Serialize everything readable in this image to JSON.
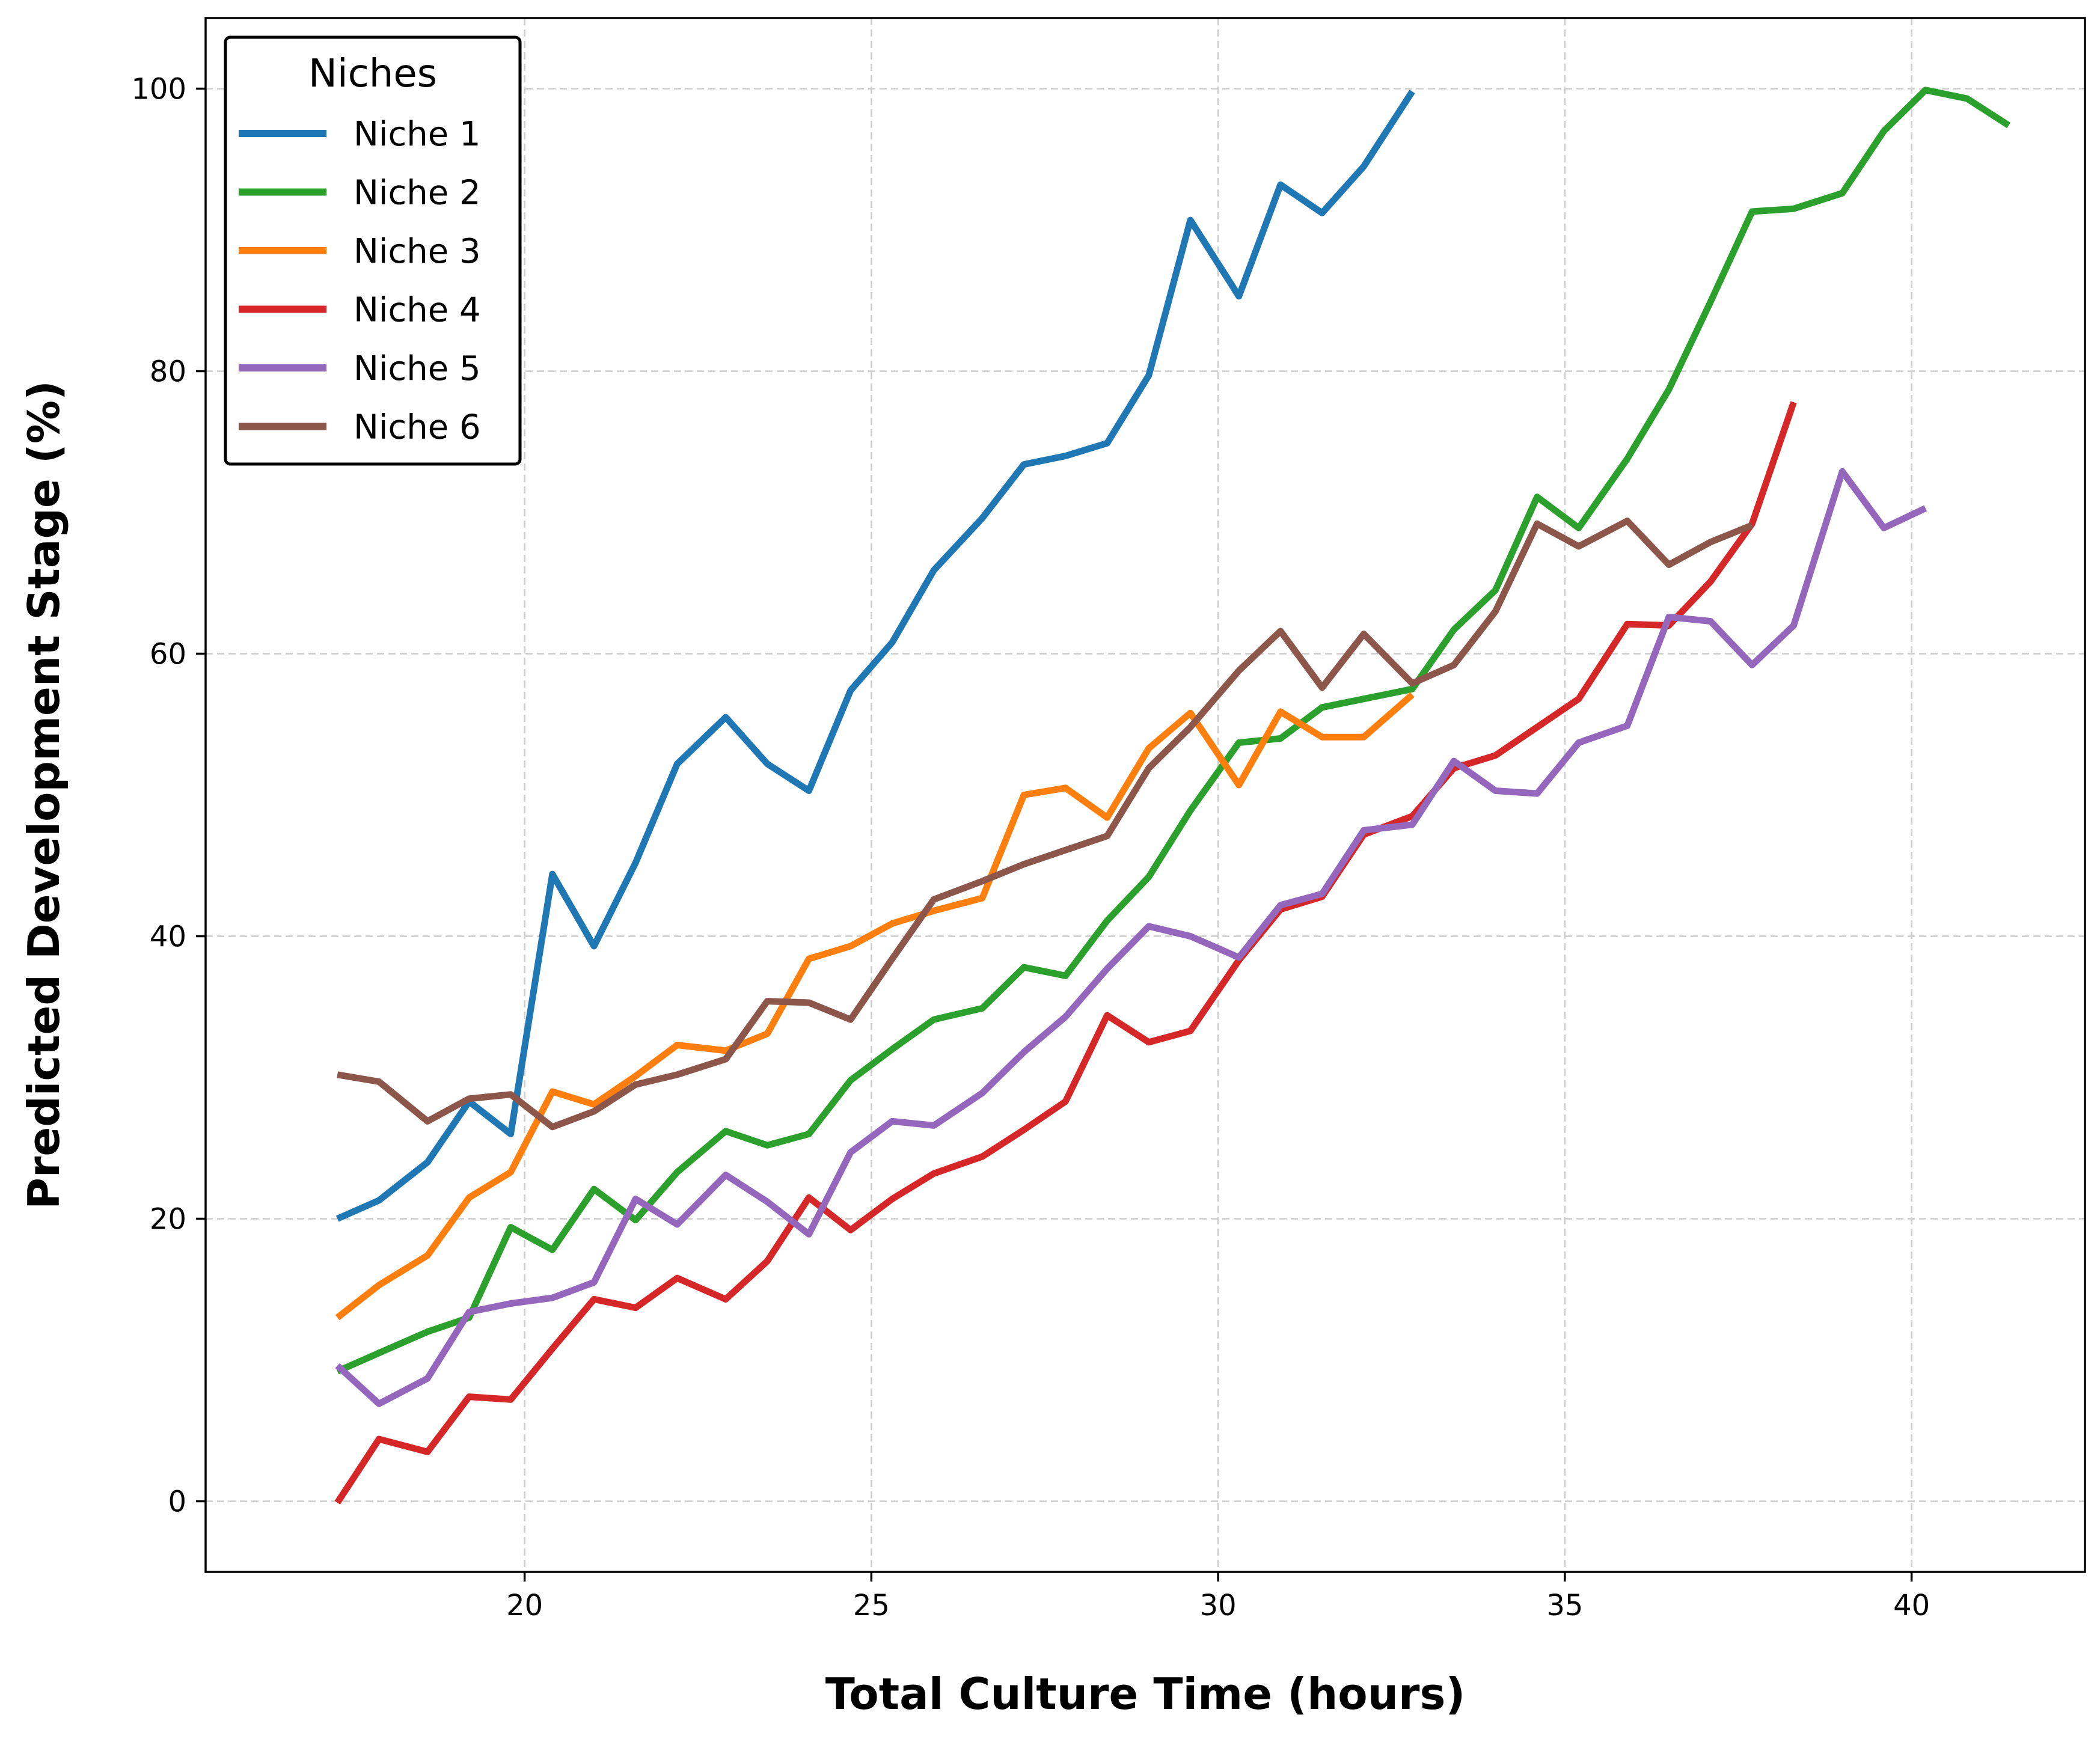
{
  "chart_data": {
    "type": "line",
    "title": "",
    "xlabel": "Total Culture Time (hours)",
    "ylabel": "Predicted Development Stage (%)",
    "xlim": [
      15.4,
      42.5
    ],
    "ylim": [
      -5,
      105
    ],
    "xticks": [
      20,
      25,
      30,
      35,
      40
    ],
    "yticks": [
      0,
      20,
      40,
      60,
      80,
      100
    ],
    "grid": true,
    "legend": {
      "title": "Niches",
      "position": "top-left"
    },
    "series": [
      {
        "name": "Niche 1",
        "color": "#1f77b4",
        "x": [
          17.3,
          17.9,
          18.6,
          19.2,
          19.8,
          20.4,
          21.0,
          21.6,
          22.2,
          22.9,
          23.5,
          24.1,
          24.7,
          25.3,
          25.9,
          26.6,
          27.2,
          27.8,
          28.4,
          29.0,
          29.6,
          30.3,
          30.9,
          31.5,
          32.1,
          32.8
        ],
        "y": [
          20.0,
          21.3,
          24.0,
          28.3,
          26.0,
          44.4,
          39.3,
          45.2,
          52.2,
          55.5,
          52.2,
          50.3,
          57.4,
          60.8,
          65.9,
          69.6,
          73.4,
          74.0,
          74.9,
          79.7,
          90.7,
          85.3,
          93.2,
          91.2,
          94.5,
          99.8
        ]
      },
      {
        "name": "Niche 2",
        "color": "#2ca02c",
        "x": [
          17.3,
          17.9,
          18.6,
          19.2,
          19.8,
          20.4,
          21.0,
          21.6,
          22.2,
          22.9,
          23.5,
          24.1,
          24.7,
          25.3,
          25.9,
          26.6,
          27.2,
          27.8,
          28.4,
          29.0,
          29.6,
          30.3,
          30.9,
          31.5,
          32.1,
          32.8,
          33.4,
          34.0,
          34.6,
          35.2,
          35.9,
          36.5,
          37.1,
          37.7,
          38.3,
          39.0,
          39.6,
          40.2,
          40.8,
          41.4
        ],
        "y": [
          9.2,
          10.5,
          12.0,
          13.0,
          19.4,
          17.8,
          22.1,
          19.9,
          23.3,
          26.2,
          25.2,
          26.0,
          29.8,
          32.0,
          34.1,
          34.9,
          37.8,
          37.2,
          41.1,
          44.2,
          48.9,
          53.7,
          54.0,
          56.2,
          56.8,
          57.5,
          61.7,
          64.5,
          71.1,
          68.9,
          73.8,
          78.7,
          84.9,
          91.3,
          91.5,
          92.6,
          97.0,
          99.9,
          99.3,
          97.4
        ]
      },
      {
        "name": "Niche 3",
        "color": "#ff7f0e",
        "x": [
          17.3,
          17.9,
          18.6,
          19.2,
          19.8,
          20.4,
          21.0,
          21.6,
          22.2,
          22.9,
          23.5,
          24.1,
          24.7,
          25.3,
          25.9,
          26.6,
          27.2,
          27.8,
          28.4,
          29.0,
          29.6,
          30.3,
          30.9,
          31.5,
          32.1,
          32.8
        ],
        "y": [
          13.0,
          15.3,
          17.4,
          21.5,
          23.3,
          29.0,
          28.1,
          30.1,
          32.3,
          31.9,
          33.1,
          38.4,
          39.3,
          40.9,
          41.8,
          42.7,
          50.0,
          50.5,
          48.4,
          53.3,
          55.8,
          50.7,
          55.9,
          54.1,
          54.1,
          57.1
        ]
      },
      {
        "name": "Niche 4",
        "color": "#d62728",
        "x": [
          17.3,
          17.9,
          18.6,
          19.2,
          19.8,
          20.4,
          21.0,
          21.6,
          22.2,
          22.9,
          23.5,
          24.1,
          24.7,
          25.3,
          25.9,
          26.6,
          27.2,
          27.8,
          28.4,
          29.0,
          29.6,
          30.3,
          30.9,
          31.5,
          32.1,
          32.8,
          33.4,
          34.0,
          34.6,
          35.2,
          35.9,
          36.5,
          37.1,
          37.7,
          38.3
        ],
        "y": [
          -0.1,
          4.4,
          3.5,
          7.4,
          7.2,
          10.8,
          14.3,
          13.7,
          15.8,
          14.3,
          17.0,
          21.5,
          19.2,
          21.4,
          23.2,
          24.4,
          26.3,
          28.3,
          34.4,
          32.5,
          33.3,
          38.3,
          41.9,
          42.8,
          47.2,
          48.5,
          51.9,
          52.8,
          54.8,
          56.8,
          62.1,
          62.0,
          65.1,
          69.2,
          77.8
        ]
      },
      {
        "name": "Niche 5",
        "color": "#9467bd",
        "x": [
          17.3,
          17.9,
          18.6,
          19.2,
          19.8,
          20.4,
          21.0,
          21.6,
          22.2,
          22.9,
          23.5,
          24.1,
          24.7,
          25.3,
          25.9,
          26.6,
          27.2,
          27.8,
          28.4,
          29.0,
          29.6,
          30.3,
          30.9,
          31.5,
          32.1,
          32.8,
          33.4,
          34.0,
          34.6,
          35.2,
          35.9,
          36.5,
          37.1,
          37.7,
          38.3,
          39.0,
          39.6,
          40.2
        ],
        "y": [
          9.6,
          6.9,
          8.7,
          13.4,
          14.0,
          14.4,
          15.5,
          21.4,
          19.6,
          23.1,
          21.2,
          18.9,
          24.7,
          26.9,
          26.6,
          28.9,
          31.8,
          34.3,
          37.7,
          40.7,
          40.0,
          38.5,
          42.2,
          43.0,
          47.5,
          47.9,
          52.4,
          50.3,
          50.1,
          53.7,
          54.9,
          62.6,
          62.3,
          59.2,
          62.0,
          72.9,
          68.9,
          70.3
        ]
      },
      {
        "name": "Niche 6",
        "color": "#8c564b",
        "x": [
          17.3,
          17.9,
          18.6,
          19.2,
          19.8,
          20.4,
          21.0,
          21.6,
          22.2,
          22.9,
          23.5,
          24.1,
          24.7,
          25.3,
          25.9,
          26.6,
          27.2,
          27.8,
          28.4,
          29.0,
          29.6,
          30.3,
          30.9,
          31.5,
          32.1,
          32.8,
          33.4,
          34.0,
          34.6,
          35.2,
          35.9,
          36.5,
          37.1,
          37.7
        ],
        "y": [
          30.2,
          29.7,
          26.9,
          28.5,
          28.8,
          26.5,
          27.6,
          29.5,
          30.2,
          31.3,
          35.4,
          35.3,
          34.1,
          38.4,
          42.6,
          43.9,
          45.1,
          46.1,
          47.1,
          51.9,
          54.8,
          58.8,
          61.6,
          57.6,
          61.4,
          57.9,
          59.2,
          63.0,
          69.2,
          67.6,
          69.4,
          66.3,
          67.9,
          69.1
        ]
      }
    ]
  }
}
